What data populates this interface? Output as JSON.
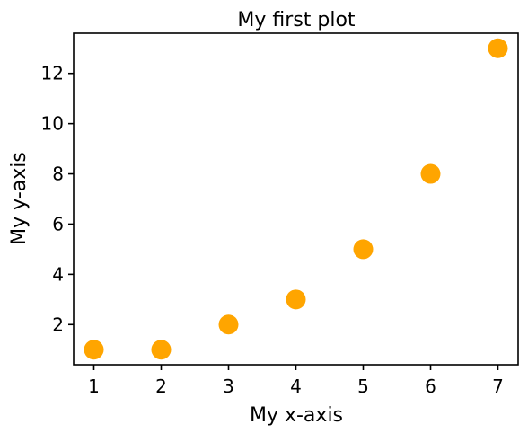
{
  "chart_data": {
    "type": "scatter",
    "title": "My first plot",
    "xlabel": "My x-axis",
    "ylabel": "My y-axis",
    "x": [
      1,
      2,
      3,
      4,
      5,
      6,
      7
    ],
    "y": [
      1,
      1,
      2,
      3,
      5,
      8,
      13
    ],
    "xlim": [
      0.7,
      7.3
    ],
    "ylim": [
      0.4,
      13.6
    ],
    "xticks": [
      1,
      2,
      3,
      4,
      5,
      6,
      7
    ],
    "yticks": [
      2,
      4,
      6,
      8,
      10,
      12
    ],
    "marker_color": "#ffa500",
    "grid": false,
    "legend": "none"
  }
}
